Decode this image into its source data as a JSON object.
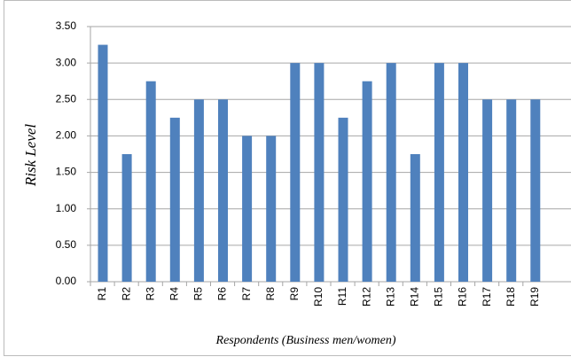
{
  "chart_data": {
    "type": "bar",
    "categories": [
      "R1",
      "R2",
      "R3",
      "R4",
      "R5",
      "R6",
      "R7",
      "R8",
      "R9",
      "R10",
      "R11",
      "R12",
      "R13",
      "R14",
      "R15",
      "R16",
      "R17",
      "R18",
      "R19"
    ],
    "values": [
      3.25,
      1.75,
      2.75,
      2.25,
      2.5,
      2.5,
      2.0,
      2.0,
      3.0,
      3.0,
      2.25,
      2.75,
      3.0,
      1.75,
      3.0,
      3.0,
      2.5,
      2.5,
      2.5
    ],
    "color": "#4f81bd",
    "y_label": "Risk  Level",
    "x_label": "Respondents (Business men/women)",
    "ylim": [
      0,
      3.5
    ],
    "yticks": [
      {
        "value": 0,
        "label": "0.00"
      },
      {
        "value": 0.5,
        "label": "0.50"
      },
      {
        "value": 1,
        "label": "1.00"
      },
      {
        "value": 1.5,
        "label": "1.50"
      },
      {
        "value": 2,
        "label": "2.00"
      },
      {
        "value": 2.5,
        "label": "2.50"
      },
      {
        "value": 3,
        "label": "3.00"
      },
      {
        "value": 3.5,
        "label": "3.50"
      }
    ],
    "grid": true
  }
}
